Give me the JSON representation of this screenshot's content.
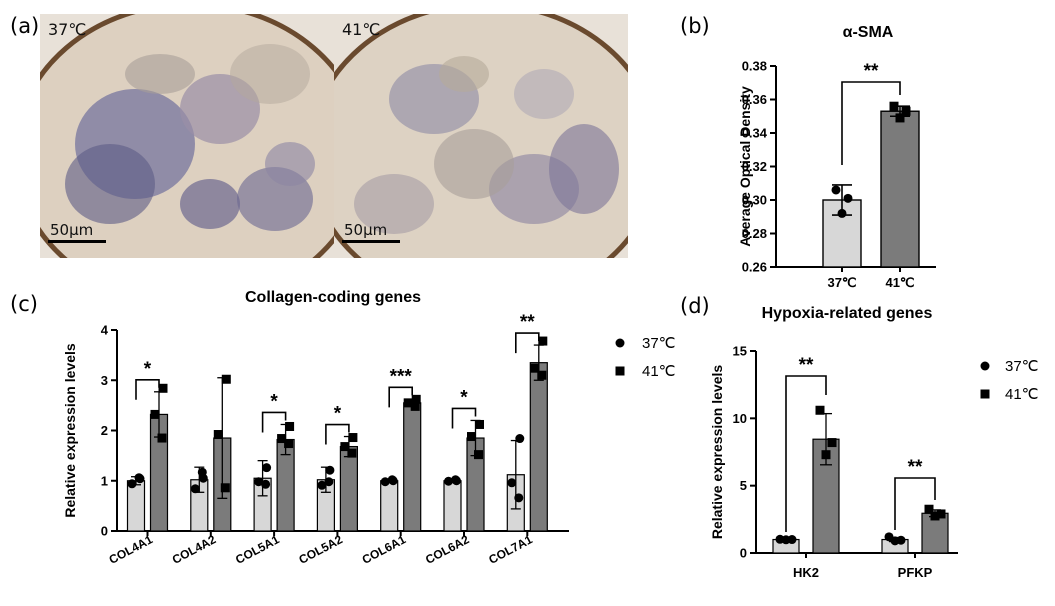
{
  "panels": {
    "a": {
      "label": "(a)",
      "images": [
        {
          "condition": "37℃",
          "scalebar": "50μm"
        },
        {
          "condition": "41℃",
          "scalebar": "50μm"
        }
      ]
    },
    "b": {
      "label": "(b)"
    },
    "c": {
      "label": "(c)"
    },
    "d": {
      "label": "(d)"
    }
  },
  "colors": {
    "light_bar": "#d7d7d7",
    "dark_bar": "#7b7b7b",
    "tissue_bg": "#e7ddd0",
    "tissue_dark": "#4f4b6e",
    "tissue_brown": "#6d4a2b"
  },
  "chart_data": [
    {
      "id": "b",
      "type": "bar",
      "title": "α-SMA",
      "ylabel": "Average Optical Density",
      "xlabel": "",
      "categories": [
        "37℃",
        "41℃"
      ],
      "values": [
        0.3,
        0.353
      ],
      "errors": [
        0.009,
        0.003
      ],
      "points": [
        [
          0.306,
          0.301,
          0.292
        ],
        [
          0.356,
          0.353,
          0.349
        ]
      ],
      "ylim": [
        0.26,
        0.38
      ],
      "yticks": [
        0.26,
        0.28,
        0.3,
        0.32,
        0.34,
        0.36,
        0.38
      ],
      "significance": [
        {
          "pair": [
            0,
            1
          ],
          "label": "**"
        }
      ]
    },
    {
      "id": "c",
      "type": "bar",
      "title": "Collagen-coding genes",
      "ylabel": "Relative expression levels",
      "xlabel": "",
      "categories": [
        "COL4A1",
        "COL4A2",
        "COL5A1",
        "COL5A2",
        "COL6A1",
        "COL6A2",
        "COL7A1"
      ],
      "series": [
        {
          "name": "37℃",
          "values": [
            1.0,
            1.02,
            1.05,
            1.02,
            1.0,
            1.0,
            1.12
          ],
          "errors": [
            0.08,
            0.25,
            0.35,
            0.25,
            0.02,
            0.03,
            0.68
          ],
          "points": [
            [
              1.04,
              0.94,
              1.06
            ],
            [
              1.05,
              0.84,
              1.17
            ],
            [
              1.26,
              0.98,
              0.93
            ],
            [
              1.21,
              0.91,
              0.98
            ],
            [
              1.0,
              0.98,
              1.02
            ],
            [
              1.0,
              0.99,
              1.02
            ],
            [
              1.84,
              0.96,
              0.66
            ]
          ]
        },
        {
          "name": "41℃",
          "values": [
            2.32,
            1.85,
            1.82,
            1.68,
            2.55,
            1.85,
            3.35
          ],
          "errors": [
            0.45,
            1.2,
            0.3,
            0.2,
            0.07,
            0.35,
            0.35
          ],
          "points": [
            [
              2.84,
              2.32,
              1.85
            ],
            [
              3.02,
              1.92,
              0.86
            ],
            [
              2.08,
              1.84,
              1.74
            ],
            [
              1.86,
              1.68,
              1.55
            ],
            [
              2.62,
              2.55,
              2.48
            ],
            [
              2.12,
              1.88,
              1.52
            ],
            [
              3.78,
              3.24,
              3.1
            ]
          ]
        }
      ],
      "ylim": [
        0,
        4
      ],
      "yticks": [
        0,
        1,
        2,
        3,
        4
      ],
      "significance": [
        "*",
        "",
        "*",
        "*",
        "***",
        "*",
        "**"
      ],
      "legend": "right"
    },
    {
      "id": "d",
      "type": "bar",
      "title": "Hypoxia-related genes",
      "ylabel": "Relative expression levels",
      "xlabel": "",
      "categories": [
        "HK2",
        "PFKP"
      ],
      "series": [
        {
          "name": "37℃",
          "values": [
            1.0,
            1.0
          ],
          "errors": [
            0.05,
            0.15
          ],
          "points": [
            [
              1.02,
              1.0,
              0.98
            ],
            [
              1.2,
              0.95,
              0.9
            ]
          ]
        },
        {
          "name": "41℃",
          "values": [
            8.45,
            2.95
          ],
          "errors": [
            1.9,
            0.25
          ],
          "points": [
            [
              10.6,
              8.2,
              7.3
            ],
            [
              3.25,
              2.9,
              2.75
            ]
          ]
        }
      ],
      "ylim": [
        0,
        15
      ],
      "yticks": [
        0,
        5,
        10,
        15
      ],
      "significance": [
        "**",
        "**"
      ],
      "legend": "right"
    }
  ]
}
